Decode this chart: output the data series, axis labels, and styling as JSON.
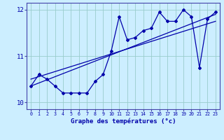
{
  "xlabel": "Graphe des températures (°c)",
  "background_color": "#cceeff",
  "line_color": "#0000aa",
  "grid_color": "#99cccc",
  "axis_color": "#4444aa",
  "text_color": "#0000aa",
  "xlim": [
    -0.5,
    23.5
  ],
  "ylim": [
    9.85,
    12.15
  ],
  "yticks": [
    10,
    11,
    12
  ],
  "xticks": [
    0,
    1,
    2,
    3,
    4,
    5,
    6,
    7,
    8,
    9,
    10,
    11,
    12,
    13,
    14,
    15,
    16,
    17,
    18,
    19,
    20,
    21,
    22,
    23
  ],
  "series1_x": [
    0,
    1,
    2,
    3,
    4,
    5,
    6,
    7,
    8,
    9,
    10,
    11,
    12,
    13,
    14,
    15,
    16,
    17,
    18,
    19,
    20,
    21,
    22,
    23
  ],
  "series1_y": [
    10.35,
    10.6,
    10.5,
    10.35,
    10.2,
    10.2,
    10.2,
    10.2,
    10.45,
    10.6,
    11.1,
    11.85,
    11.35,
    11.4,
    11.55,
    11.6,
    11.95,
    11.75,
    11.75,
    12.0,
    11.85,
    10.75,
    11.8,
    11.95
  ],
  "line2_x": [
    0,
    23
  ],
  "line2_y": [
    10.35,
    11.9
  ],
  "line3_x": [
    0,
    23
  ],
  "line3_y": [
    10.5,
    11.75
  ],
  "marker": "D",
  "markersize": 2.0,
  "linewidth": 0.9
}
